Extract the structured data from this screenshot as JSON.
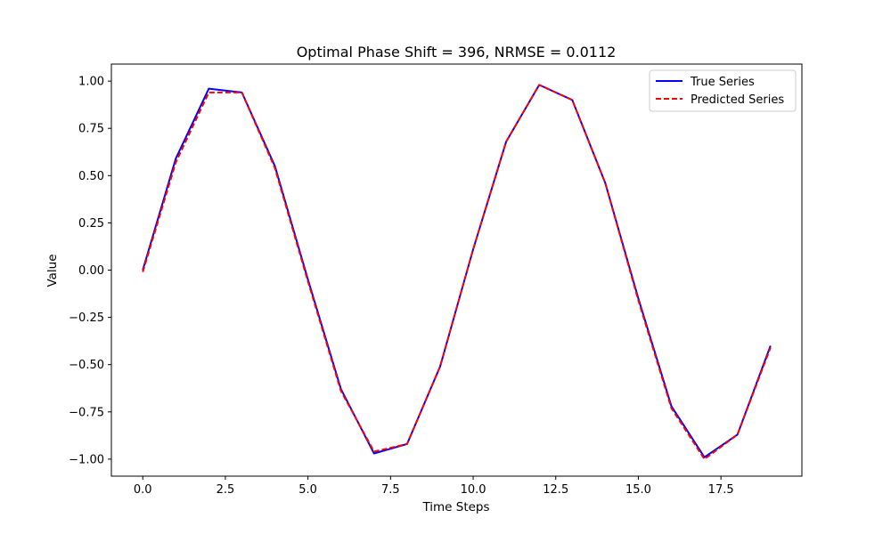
{
  "chart_data": {
    "type": "line",
    "title": "Optimal Phase Shift = 396, NRMSE = 0.0112",
    "xlabel": "Time Steps",
    "ylabel": "Value",
    "xlim": [
      -0.95,
      19.95
    ],
    "ylim": [
      -1.09,
      1.09
    ],
    "xticks": [
      0,
      2.5,
      5,
      7.5,
      10,
      12.5,
      15,
      17.5
    ],
    "xtick_labels": [
      "0.0",
      "2.5",
      "5.0",
      "7.5",
      "10.0",
      "12.5",
      "15.0",
      "17.5"
    ],
    "yticks": [
      1.0,
      0.75,
      0.5,
      0.25,
      0.0,
      -0.25,
      -0.5,
      -0.75,
      -1.0
    ],
    "ytick_labels": [
      "1.00",
      "0.75",
      "0.50",
      "0.25",
      "0.00",
      "−0.25",
      "−0.50",
      "−0.75",
      "−1.00"
    ],
    "grid": false,
    "legend_position": "top-right",
    "x": [
      0,
      1,
      2,
      3,
      4,
      5,
      6,
      7,
      8,
      9,
      10,
      11,
      12,
      13,
      14,
      15,
      16,
      17,
      18,
      19
    ],
    "series": [
      {
        "name": "True Series",
        "color": "#0000ff",
        "linestyle": "solid",
        "values": [
          0.0,
          0.59,
          0.96,
          0.94,
          0.55,
          -0.05,
          -0.63,
          -0.97,
          -0.92,
          -0.51,
          0.11,
          0.68,
          0.98,
          0.9,
          0.46,
          -0.15,
          -0.72,
          -0.99,
          -0.87,
          -0.4
        ]
      },
      {
        "name": "Predicted Series",
        "color": "#ff0000",
        "linestyle": "dashed",
        "values": [
          -0.01,
          0.57,
          0.94,
          0.94,
          0.54,
          -0.06,
          -0.64,
          -0.96,
          -0.92,
          -0.51,
          0.11,
          0.68,
          0.98,
          0.9,
          0.46,
          -0.16,
          -0.73,
          -1.0,
          -0.87,
          -0.41
        ]
      }
    ]
  }
}
